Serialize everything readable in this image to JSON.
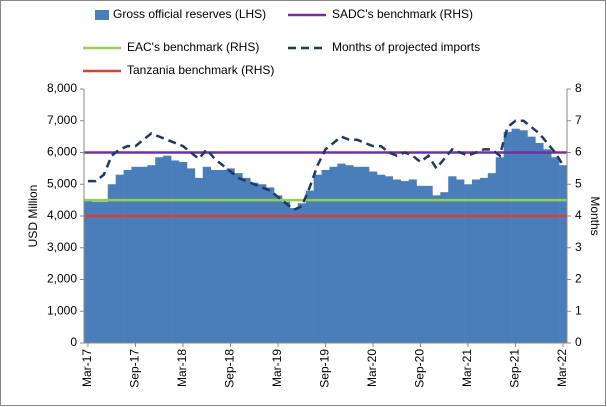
{
  "chart_data": {
    "type": "bar-line",
    "y_label": "USD Million",
    "y2_label": "Months",
    "categories": [
      "Mar-17",
      null,
      null,
      null,
      null,
      null,
      "Sep-17",
      null,
      null,
      null,
      null,
      null,
      "Mar-18",
      null,
      null,
      null,
      null,
      null,
      "Sep-18",
      null,
      null,
      null,
      null,
      null,
      "Mar-19",
      null,
      null,
      null,
      null,
      null,
      "Sep-19",
      null,
      null,
      null,
      null,
      null,
      "Mar-20",
      null,
      null,
      null,
      null,
      null,
      "Sep-20",
      null,
      null,
      null,
      null,
      null,
      "Mar-21",
      null,
      null,
      null,
      null,
      null,
      "Sep-21",
      null,
      null,
      null,
      null,
      null,
      "Mar-22"
    ],
    "series": [
      {
        "name": "Gross official reserves (LHS)",
        "type": "bar",
        "color": "#4a7ebb",
        "values": [
          4500,
          4450,
          4450,
          5000,
          5300,
          5450,
          5550,
          5550,
          5600,
          5850,
          5900,
          5750,
          5700,
          5500,
          5200,
          5550,
          5450,
          5450,
          5500,
          5350,
          5200,
          5050,
          5000,
          4900,
          4650,
          4450,
          4250,
          4400,
          4800,
          5300,
          5450,
          5550,
          5650,
          5600,
          5550,
          5550,
          5400,
          5300,
          5250,
          5150,
          5100,
          5150,
          4950,
          4950,
          4650,
          4750,
          5250,
          5150,
          5000,
          5150,
          5200,
          5350,
          5850,
          6650,
          6750,
          6700,
          6500,
          6300,
          6100,
          5850,
          5600
        ]
      },
      {
        "name": "SADC's benchmark (RHS)",
        "type": "hline",
        "axis": "y2",
        "color": "#7030a0",
        "value": 6
      },
      {
        "name": "EAC's benchmark (RHS)",
        "type": "hline",
        "axis": "y2",
        "color": "#92d050",
        "value": 4.5
      },
      {
        "name": "Months of projected imports",
        "type": "line",
        "axis": "y2",
        "color": "#1f3864",
        "dashed": true,
        "values": [
          5.1,
          5.1,
          5.3,
          5.9,
          6.1,
          6.2,
          6.2,
          6.4,
          6.6,
          6.5,
          6.4,
          6.3,
          6.2,
          6.0,
          5.8,
          6.1,
          5.8,
          5.6,
          5.4,
          5.2,
          5.1,
          5.0,
          4.9,
          4.8,
          4.6,
          4.4,
          4.2,
          4.3,
          4.9,
          5.6,
          6.1,
          6.3,
          6.5,
          6.4,
          6.4,
          6.3,
          6.2,
          6.2,
          6.0,
          5.9,
          6.0,
          5.9,
          5.7,
          5.9,
          5.5,
          5.8,
          6.1,
          6.0,
          5.9,
          6.0,
          6.1,
          6.1,
          5.9,
          6.8,
          7.0,
          7.0,
          6.8,
          6.6,
          6.3,
          6.0,
          5.6
        ]
      },
      {
        "name": "Tanzania benchmark (RHS)",
        "type": "hline",
        "axis": "y2",
        "color": "#e03c31",
        "value": 4
      }
    ],
    "ylim": [
      0,
      8000
    ],
    "yticks": [
      0,
      {
        "value": 1000,
        "label": "1,000"
      },
      {
        "value": 2000,
        "label": "2,000"
      },
      {
        "value": 3000,
        "label": "3,000"
      },
      {
        "value": 4000,
        "label": "4,000"
      },
      {
        "value": 5000,
        "label": "5,000"
      },
      {
        "value": 6000,
        "label": "6,000"
      },
      {
        "value": 7000,
        "label": "7,000"
      },
      {
        "value": 8000,
        "label": "8,000"
      }
    ],
    "y2lim": [
      0,
      8
    ],
    "y2ticks": [
      0,
      1,
      2,
      3,
      4,
      5,
      6,
      7,
      8
    ]
  }
}
